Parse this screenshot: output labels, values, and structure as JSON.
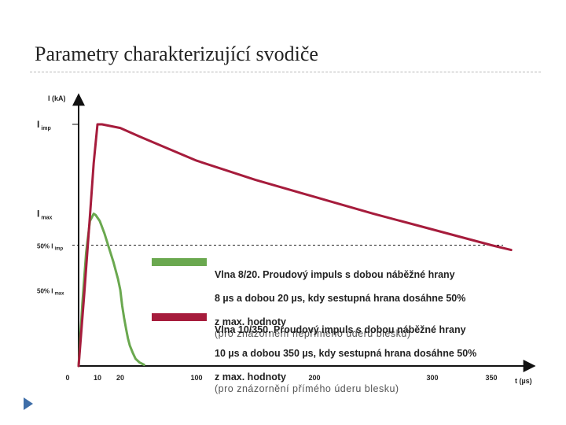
{
  "slide": {
    "title": "Parametry charakterizující svodiče"
  },
  "chart_data": {
    "type": "line",
    "title": "",
    "xlabel": "t (µs)",
    "ylabel": "I (kA)",
    "x_ticks": [
      {
        "label": "0",
        "value": 0
      },
      {
        "label": "10",
        "value": 10
      },
      {
        "label": "20",
        "value": 20
      },
      {
        "label": "100",
        "value": 100
      },
      {
        "label": "200",
        "value": 200
      },
      {
        "label": "300",
        "value": 300
      },
      {
        "label": "350",
        "value": 350
      }
    ],
    "y_levels": {
      "i_imp": {
        "main": "I",
        "sub": "imp",
        "value": 1.0
      },
      "i_max": {
        "main": "I",
        "sub": "max",
        "value": 0.63
      },
      "half_i_imp": {
        "main": "50% I",
        "sub": "imp",
        "value": 0.5
      },
      "half_i_max": {
        "main": "50% I",
        "sub": "max",
        "value": 0.315
      }
    },
    "series": [
      {
        "name": "8/20",
        "color": "#6aa84f",
        "points": [
          [
            0,
            0
          ],
          [
            2,
            0.26
          ],
          [
            4,
            0.47
          ],
          [
            6,
            0.6
          ],
          [
            8,
            0.63
          ],
          [
            9,
            0.625
          ],
          [
            11,
            0.6
          ],
          [
            13,
            0.55
          ],
          [
            15,
            0.49
          ],
          [
            17,
            0.43
          ],
          [
            19,
            0.36
          ],
          [
            20,
            0.315
          ],
          [
            22,
            0.25
          ],
          [
            24,
            0.2
          ],
          [
            26,
            0.155
          ],
          [
            28,
            0.115
          ],
          [
            30,
            0.085
          ],
          [
            33,
            0.055
          ],
          [
            36,
            0.03
          ],
          [
            40,
            0.015
          ],
          [
            45,
            0.005
          ]
        ]
      },
      {
        "name": "10/350",
        "color": "#a61c3c",
        "points": [
          [
            0,
            0
          ],
          [
            3,
            0.3
          ],
          [
            6,
            0.62
          ],
          [
            8,
            0.84
          ],
          [
            10,
            1.0
          ],
          [
            12,
            1.0
          ],
          [
            20,
            0.985
          ],
          [
            40,
            0.95
          ],
          [
            70,
            0.9
          ],
          [
            100,
            0.85
          ],
          [
            150,
            0.77
          ],
          [
            200,
            0.7
          ],
          [
            250,
            0.63
          ],
          [
            300,
            0.565
          ],
          [
            350,
            0.5
          ],
          [
            368,
            0.48
          ]
        ]
      }
    ],
    "legend_position": "right-center",
    "grid": false,
    "legend": [
      {
        "series": "8/20",
        "color": "#6aa84f",
        "bold_lines": [
          "Vlna 8/20. Proudový impuls s dobou náběžné hrany",
          "8 µs a dobou 20 µs, kdy sestupná hrana dosáhne 50%",
          "z max. hodnoty"
        ],
        "light_text": "(pro znázornění nepřímého úderu blesku)"
      },
      {
        "series": "10/350",
        "color": "#a61c3c",
        "bold_lines": [
          "Vlna 10/350. Proudový impuls s dobou náběžné hrany",
          "10 µs a dobou 350 µs, kdy sestupná hrana dosáhne 50%",
          "z max. hodnoty"
        ],
        "light_text": "(pro znázornění přímého úderu blesku)"
      }
    ]
  }
}
